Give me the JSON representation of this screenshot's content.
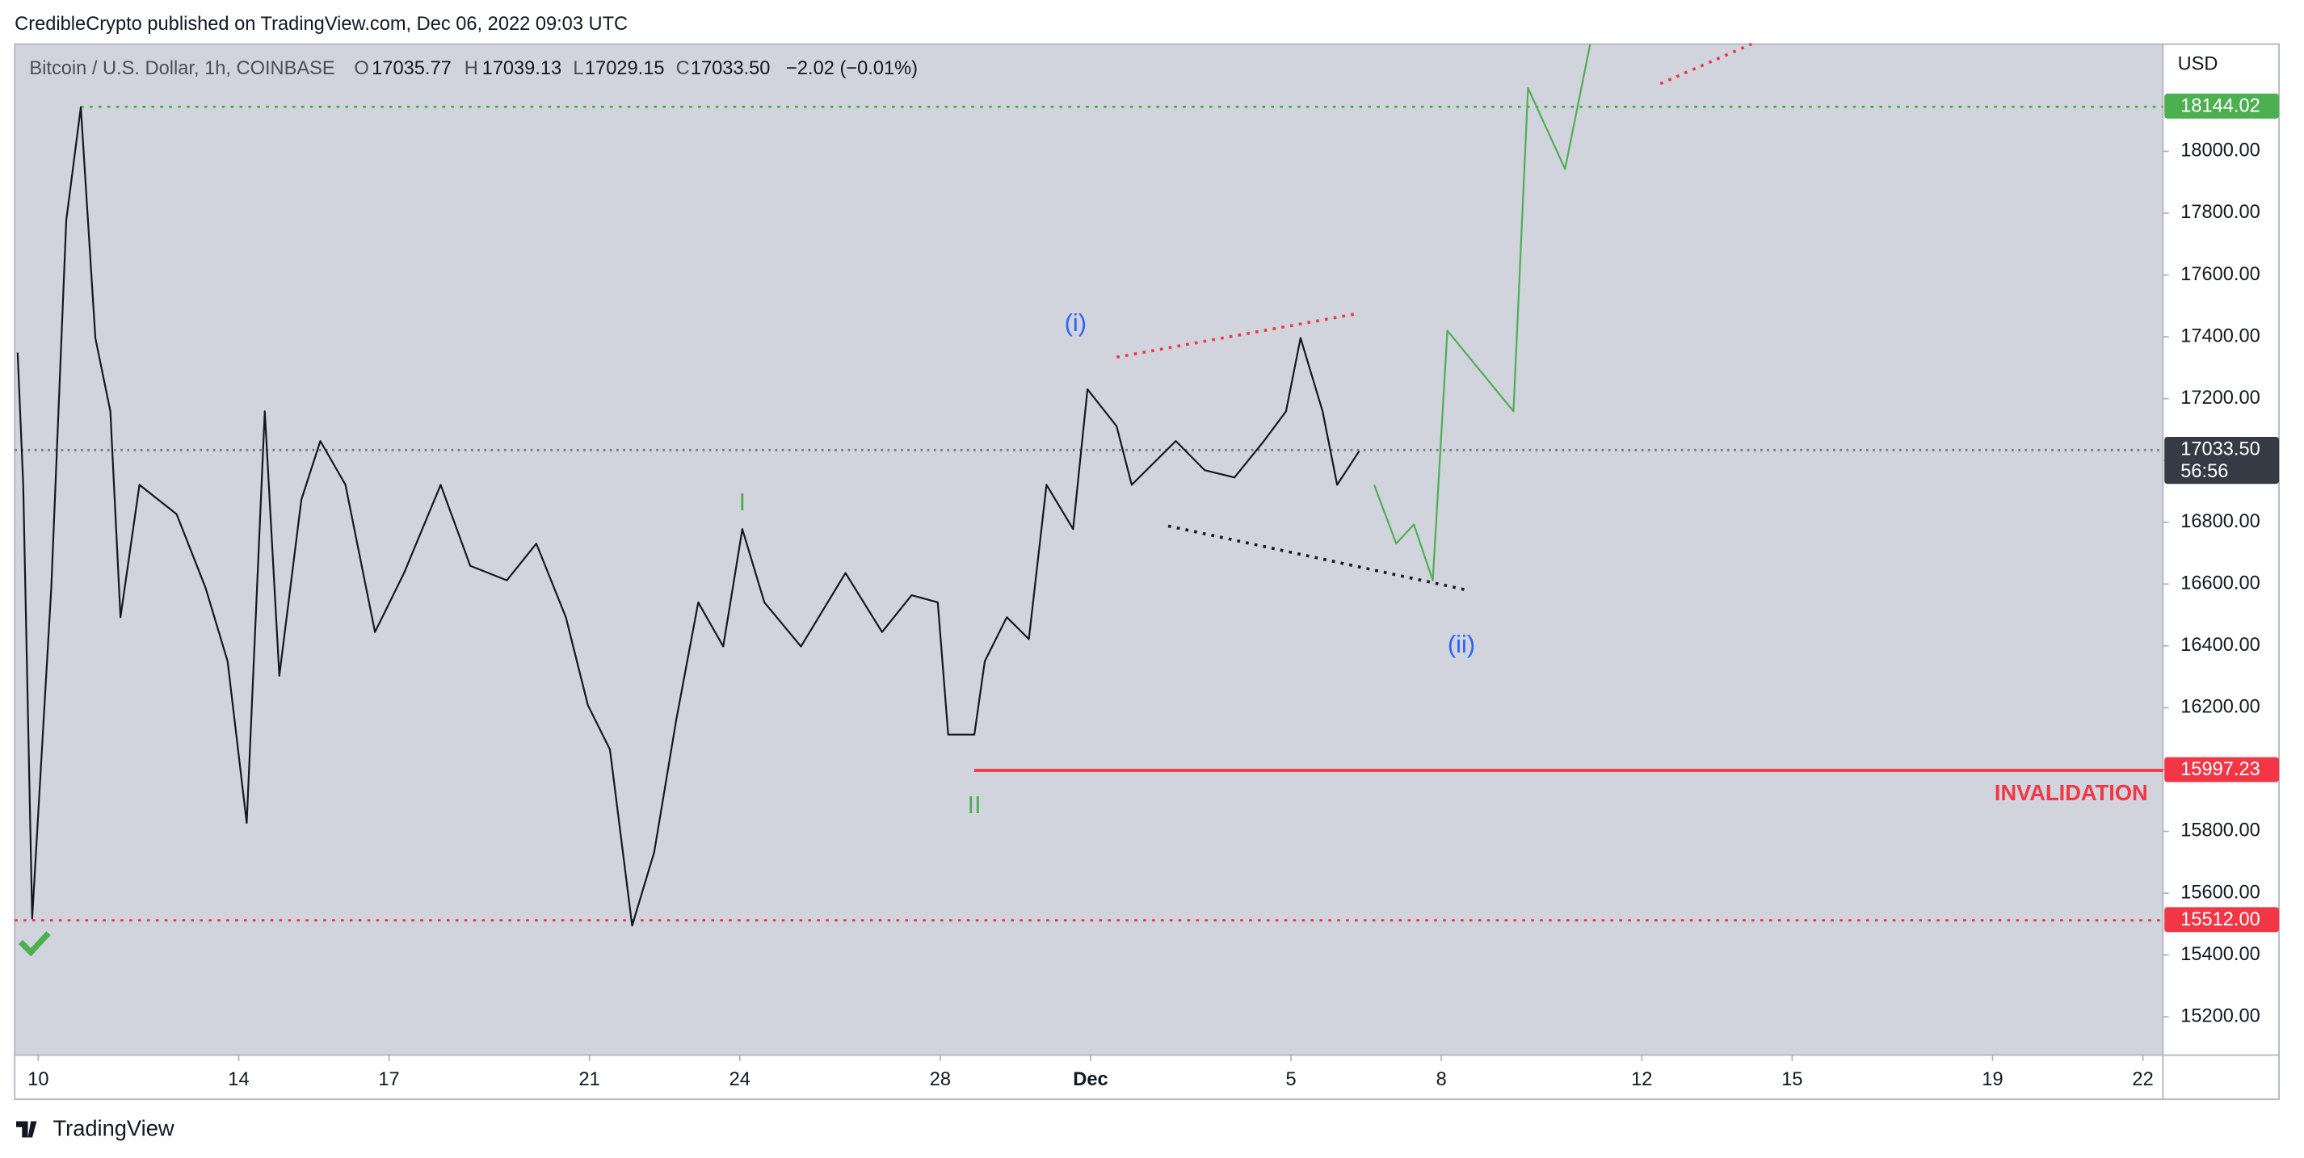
{
  "header": {
    "text": "CredibleCrypto published on TradingView.com, Dec 06, 2022 09:03 UTC"
  },
  "legend": {
    "symbol": "Bitcoin / U.S. Dollar, 1h, COINBASE",
    "ohlc": [
      {
        "key": "O",
        "text": "17035.77"
      },
      {
        "key": "H",
        "text": "17039.13"
      },
      {
        "key": "L",
        "text": "17029.15"
      },
      {
        "key": "C",
        "text": "17033.50"
      }
    ],
    "change": "−2.02 (−0.01%)"
  },
  "footer": {
    "brand": "TradingView"
  },
  "chart_data": {
    "type": "line",
    "currency": "USD",
    "xlim": [
      -0.47,
      42.4
    ],
    "ylim": [
      15076,
      18347
    ],
    "xticks": [
      {
        "value": 0,
        "label": "10"
      },
      {
        "value": 4,
        "label": "14"
      },
      {
        "value": 7,
        "label": "17"
      },
      {
        "value": 11,
        "label": "21"
      },
      {
        "value": 14,
        "label": "24"
      },
      {
        "value": 18,
        "label": "28"
      },
      {
        "value": 21,
        "label": "Dec"
      },
      {
        "value": 25,
        "label": "5"
      },
      {
        "value": 28,
        "label": "8"
      },
      {
        "value": 32,
        "label": "12"
      },
      {
        "value": 35,
        "label": "15"
      },
      {
        "value": 39,
        "label": "19"
      },
      {
        "value": 42,
        "label": "22"
      }
    ],
    "yticks": [
      {
        "value": 15200,
        "label": "15200.00"
      },
      {
        "value": 15400,
        "label": "15400.00"
      },
      {
        "value": 15600,
        "label": "15600.00"
      },
      {
        "value": 15800,
        "label": "15800.00"
      },
      {
        "value": 16000,
        "label": "16000.00"
      },
      {
        "value": 16200,
        "label": "16200.00"
      },
      {
        "value": 16400,
        "label": "16400.00"
      },
      {
        "value": 16600,
        "label": "16600.00"
      },
      {
        "value": 16800,
        "label": "16800.00"
      },
      {
        "value": 17000,
        "label": "17000.00"
      },
      {
        "value": 17200,
        "label": "17200.00"
      },
      {
        "value": 17400,
        "label": "17400.00"
      },
      {
        "value": 17600,
        "label": "17600.00"
      },
      {
        "value": 17800,
        "label": "17800.00"
      },
      {
        "value": 18000,
        "label": "18000.00"
      }
    ],
    "series": [
      {
        "color": "#131722",
        "x": [
          -0.41,
          -0.3,
          -0.12,
          0.26,
          0.56,
          0.85,
          1.14,
          1.44,
          1.64,
          2.02,
          2.76,
          3.34,
          3.78,
          4.16,
          4.52,
          4.81,
          5.25,
          5.63,
          6.13,
          6.72,
          7.3,
          8.03,
          8.62,
          9.35,
          9.94,
          10.53,
          10.97,
          11.41,
          11.85,
          12.29,
          12.73,
          13.17,
          13.67,
          14.05,
          14.49,
          15.22,
          16.11,
          16.84,
          17.43,
          17.95,
          18.16,
          18.68,
          18.89,
          19.33,
          19.77,
          20.12,
          20.65,
          20.94,
          21.52,
          21.82,
          22.7,
          23.28,
          23.87,
          24.46,
          24.9,
          25.19,
          25.63,
          25.92,
          26.36
        ],
        "values": [
          17349,
          16921,
          15518,
          16588,
          17777,
          18143,
          17396,
          17159,
          16493,
          16921,
          16826,
          16588,
          16350,
          15827,
          17159,
          16303,
          16873,
          17063,
          16921,
          16445,
          16636,
          16921,
          16659,
          16612,
          16731,
          16493,
          16208,
          16065,
          15495,
          15732,
          16160,
          16541,
          16398,
          16778,
          16541,
          16398,
          16636,
          16445,
          16564,
          16541,
          16113,
          16113,
          16350,
          16493,
          16422,
          16921,
          16778,
          17230,
          17111,
          16921,
          17063,
          16968,
          16945,
          17063,
          17159,
          17396,
          17159,
          16921,
          17030
        ]
      },
      {
        "color": "#4caf50",
        "x": [
          26.66,
          27.1,
          27.45,
          27.83,
          28.12,
          29.44,
          29.73,
          30.47,
          30.97
        ],
        "values": [
          16921,
          16731,
          16793,
          16612,
          17420,
          17159,
          18205,
          17943,
          18347
        ]
      }
    ],
    "levels": [
      {
        "value": 18144.02,
        "color": "#4caf50",
        "style": "dotted",
        "from": 0.85
      },
      {
        "value": {
          "value": 17033.5,
          "label": "17033.50"
        },
        "countdown": "56:56",
        "color": "#787b86",
        "badge": "#363a45",
        "style": "dotted",
        "from": -0.47
      },
      {
        "value": 15997.23,
        "color": "#f23645",
        "style": "solid",
        "from": 18.68
      },
      {
        "value": {
          "value": 15512,
          "label": "15512.00"
        },
        "color": "#f23645",
        "style": "dotted",
        "from": -0.47
      }
    ],
    "trendlines": [
      {
        "x": [
          21.52,
          26.36
        ],
        "values": [
          17334,
          17476
        ],
        "color": "#f23645"
      },
      {
        "x": [
          22.55,
          28.56
        ],
        "values": [
          16788,
          16579
        ],
        "color": "#131722"
      },
      {
        "x": [
          32.37,
          34.19
        ],
        "values": [
          18219,
          18347
        ],
        "color": "#f23645"
      }
    ],
    "annotations": [
      {
        "text": "(i)",
        "x": 20.7,
        "y": 17440,
        "color": "#2962ff"
      },
      {
        "text": "(ii)",
        "x": 28.4,
        "y": 16400,
        "color": "#2962ff"
      },
      {
        "text": "I",
        "x": 14.05,
        "y": 16860,
        "color": "#4caf50"
      },
      {
        "text": "II",
        "x": 18.68,
        "y": 15880,
        "color": "#4caf50"
      },
      {
        "text": "INVALIDATION",
        "x": 42.1,
        "y": 15920,
        "color": "#f23645",
        "anchor": "end"
      }
    ]
  }
}
